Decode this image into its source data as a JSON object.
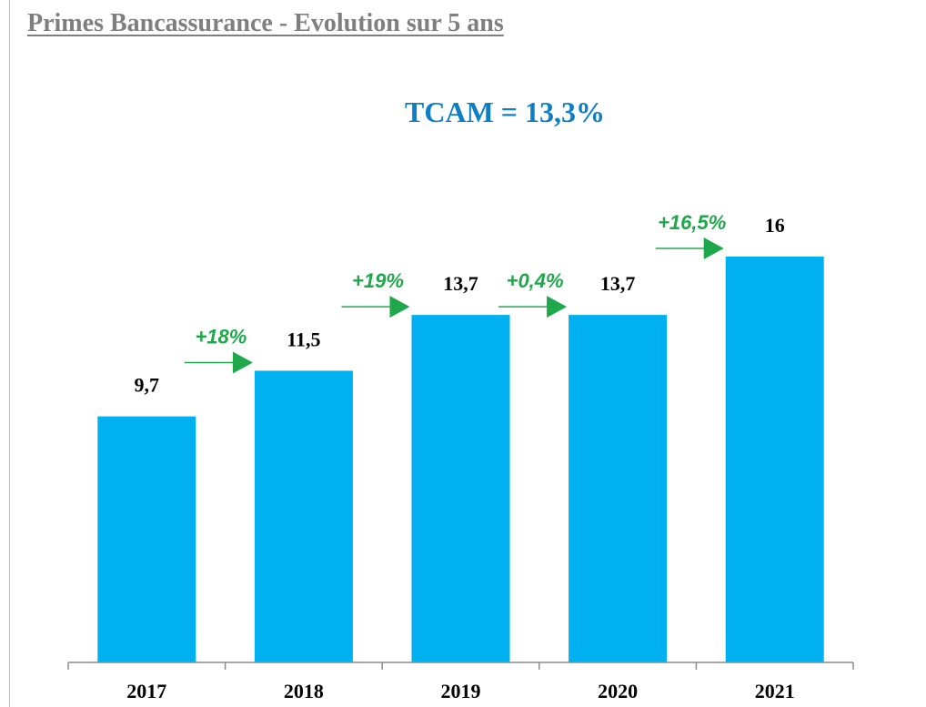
{
  "page": {
    "title": "Primes Bancassurance - Evolution sur 5 ans"
  },
  "chart_data": {
    "type": "bar",
    "title": "Primes Bancassurance - Evolution sur 5 ans",
    "subtitle": "TCAM = 13,3%",
    "categories": [
      "2017",
      "2018",
      "2019",
      "2020",
      "2021"
    ],
    "values": [
      9.7,
      11.5,
      13.7,
      13.7,
      16
    ],
    "value_labels": [
      "9,7",
      "11,5",
      "13,7",
      "13,7",
      "16"
    ],
    "growth_labels": [
      "+18%",
      "+19%",
      "+0,4%",
      "+16,5%"
    ],
    "xlabel": "",
    "ylabel": "",
    "ylim": [
      0,
      16
    ],
    "grid": false,
    "legend": "none",
    "colors": {
      "bar": "#00B0F0",
      "subtitle": "#0F7FC4",
      "growth": "#1FA84B",
      "title": "#7F7F7F",
      "axis": "#8C8C8C",
      "label": "#000000"
    }
  }
}
